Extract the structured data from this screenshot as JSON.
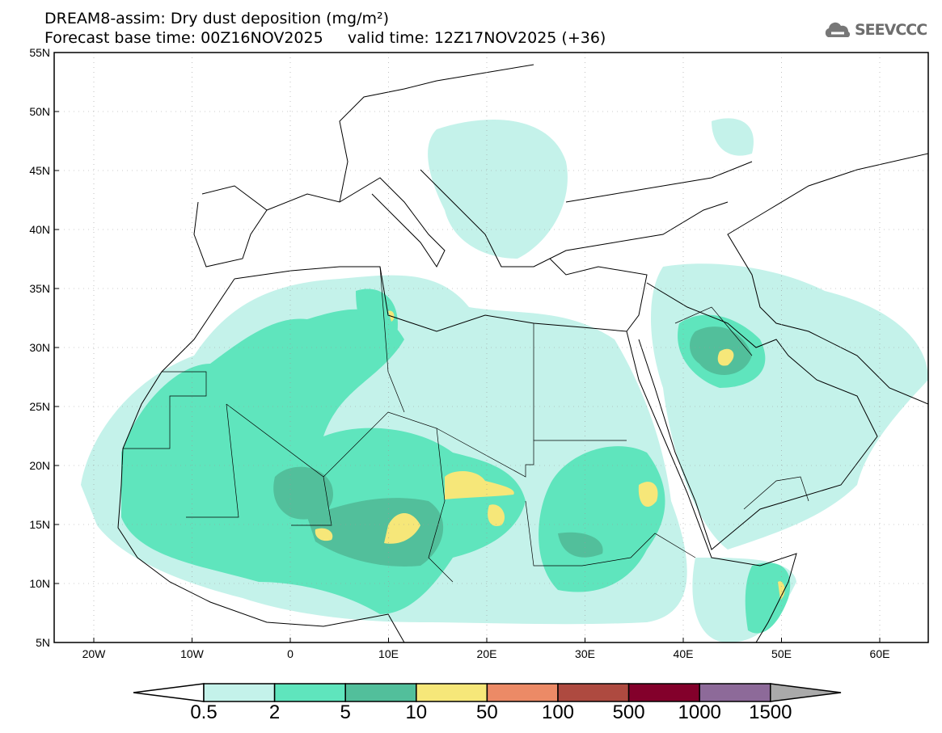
{
  "header": {
    "title": "DREAM8-assim: Dry dust deposition (mg/m²)",
    "base_time": "Forecast base time: 00Z16NOV2025",
    "valid_time": "valid time: 12Z17NOV2025 (+36)",
    "logo": "SEEVCCC"
  },
  "map": {
    "lat_labels": [
      "55N",
      "50N",
      "45N",
      "40N",
      "35N",
      "30N",
      "25N",
      "20N",
      "15N",
      "10N",
      "5N"
    ],
    "lon_labels": [
      "20W",
      "10W",
      "0",
      "10E",
      "20E",
      "30E",
      "40E",
      "50E",
      "60E"
    ]
  },
  "colorbar": {
    "labels": [
      "0.5",
      "2",
      "5",
      "10",
      "50",
      "100",
      "500",
      "1000",
      "1500"
    ],
    "colors": [
      "#c4f2ea",
      "#5fe5bd",
      "#52bf9b",
      "#f6e779",
      "#ec8a66",
      "#ae4a40",
      "#83002b",
      "#8d6a99"
    ],
    "under_color": "#ffffff",
    "over_color": "#aaaaaa"
  }
}
